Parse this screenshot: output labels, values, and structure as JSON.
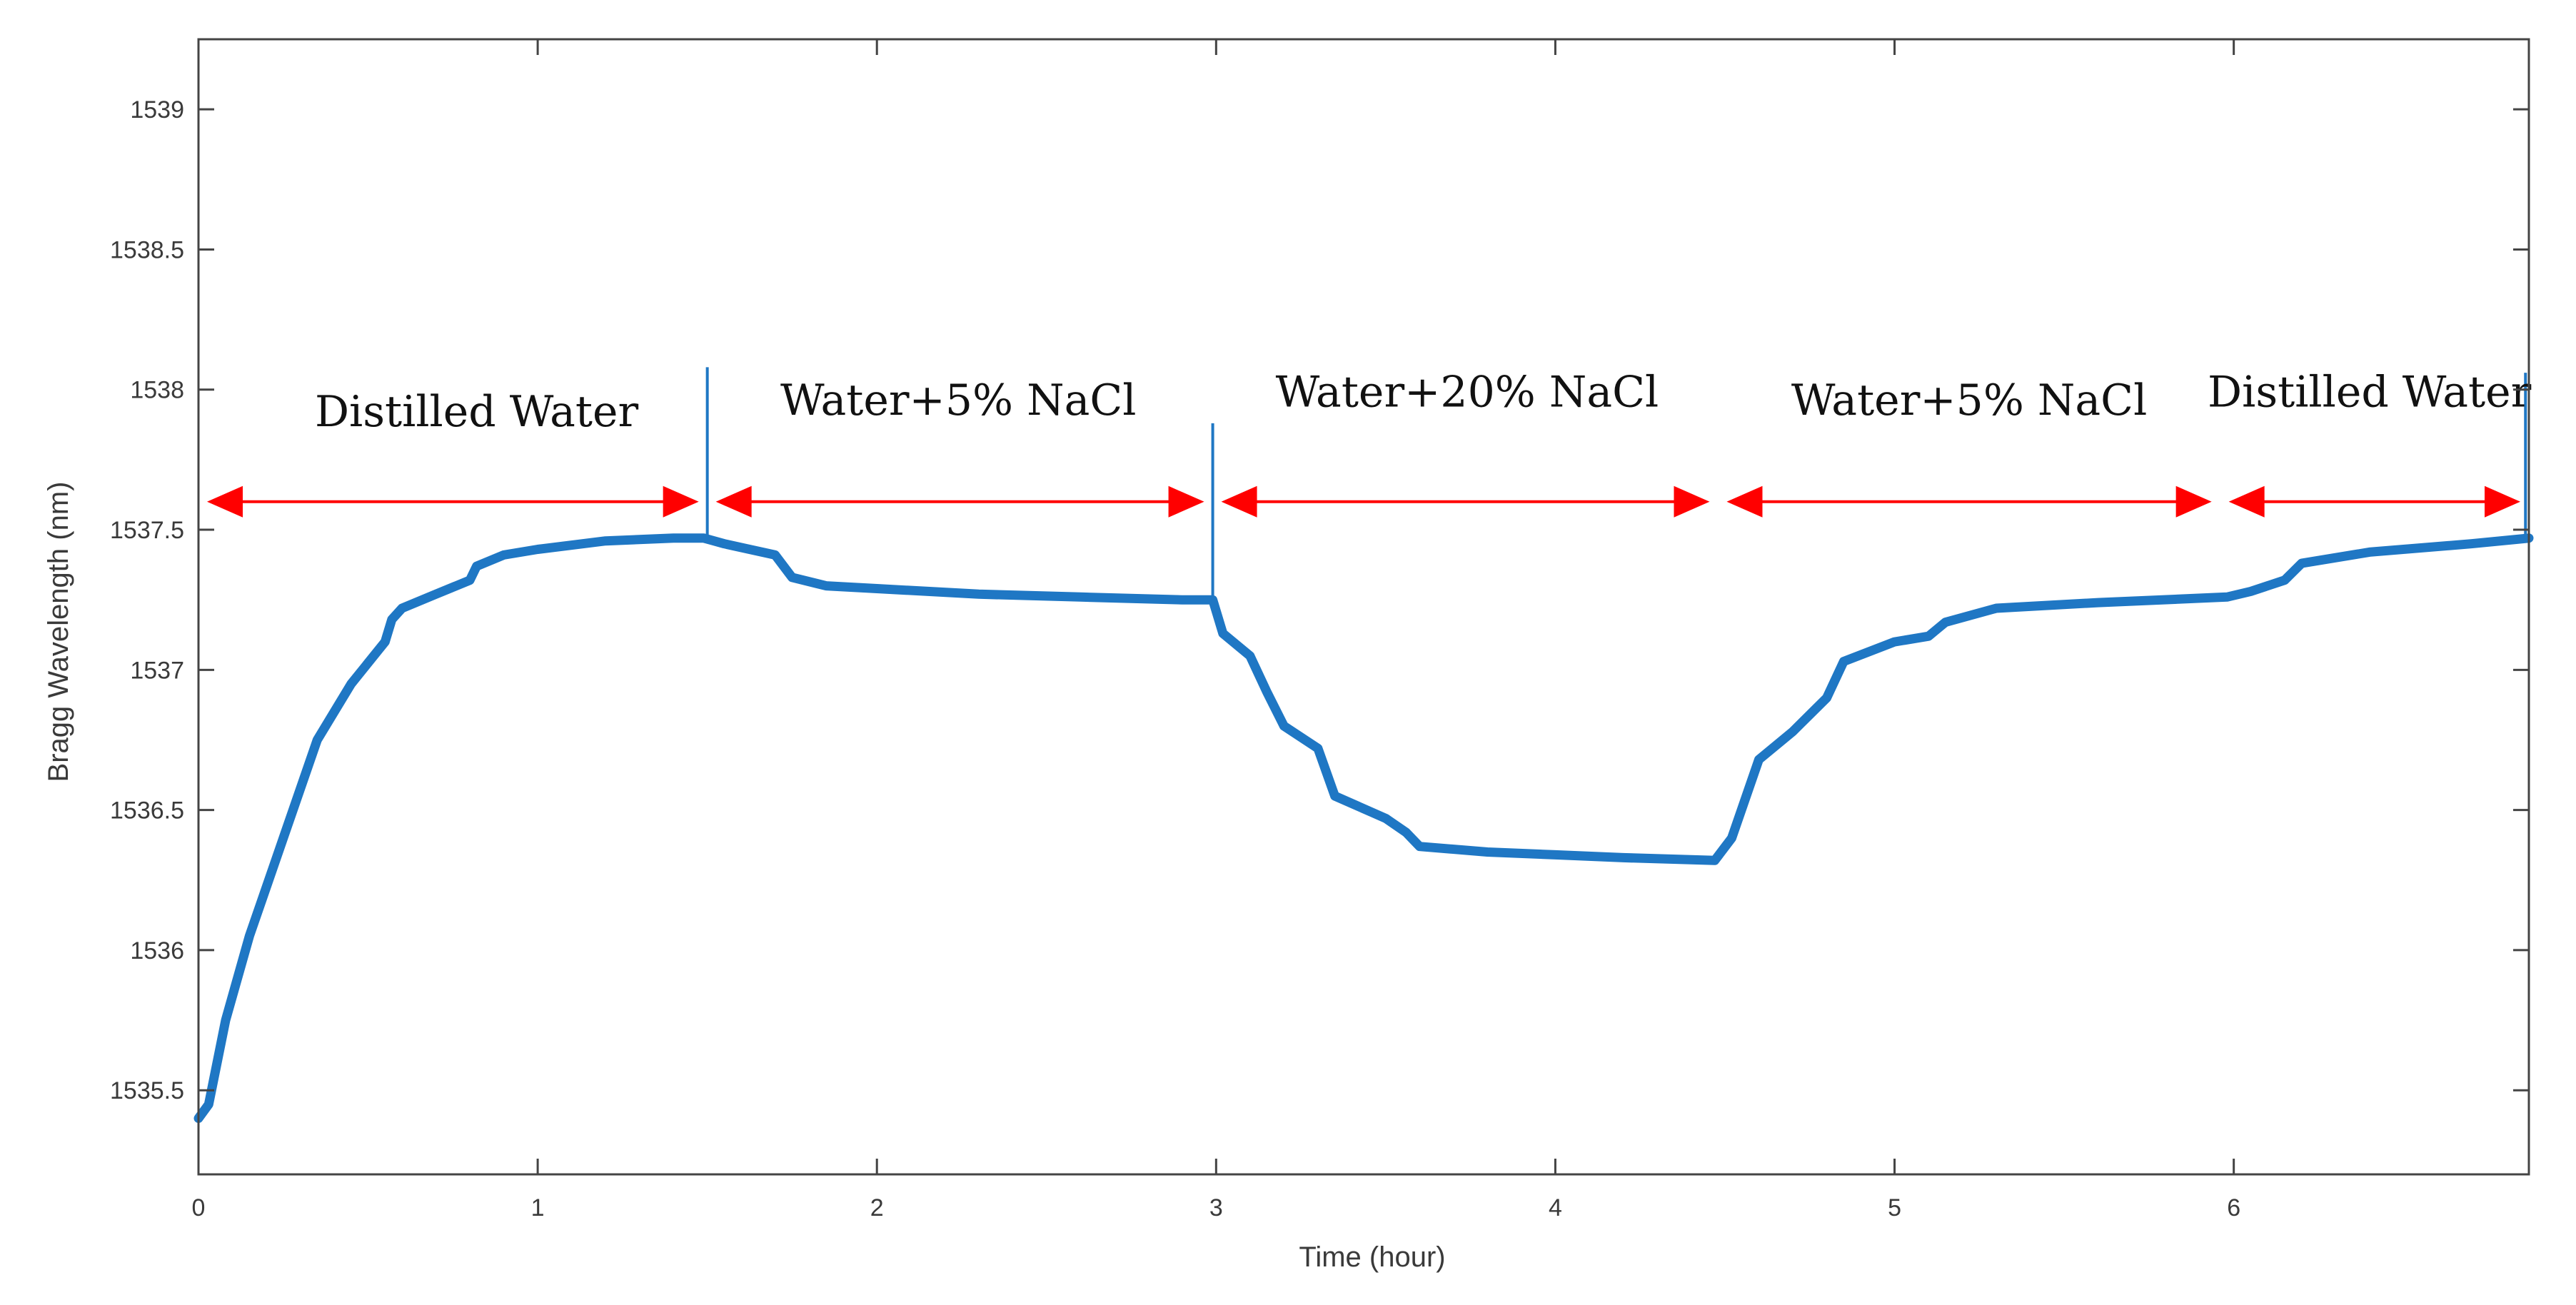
{
  "chart_data": {
    "type": "line",
    "title": "",
    "xlabel": "Time (hour)",
    "ylabel": "Bragg Wavelength (nm)",
    "xlim": [
      0,
      6.87
    ],
    "ylim": [
      1535.2,
      1539.25
    ],
    "xticks": [
      0,
      1,
      2,
      3,
      4,
      5,
      6
    ],
    "yticks": [
      1535.5,
      1536,
      1536.5,
      1537,
      1537.5,
      1538,
      1538.5,
      1539
    ],
    "xtick_labels": [
      "0",
      "1",
      "2",
      "3",
      "4",
      "5",
      "6"
    ],
    "ytick_labels": [
      "1535.5",
      "1536",
      "1536.5",
      "1537",
      "1537.5",
      "1538",
      "1538.5",
      "1539"
    ],
    "grid": false,
    "colors": {
      "series": "#1f77c4",
      "arrows": "#ff0000",
      "axes": "#444444"
    },
    "series": [
      {
        "name": "Bragg Wavelength",
        "x": [
          0,
          0.03,
          0.08,
          0.15,
          0.25,
          0.35,
          0.45,
          0.55,
          0.57,
          0.6,
          0.7,
          0.8,
          0.82,
          0.9,
          1.0,
          1.2,
          1.4,
          1.49,
          1.55,
          1.7,
          1.75,
          1.85,
          2.0,
          2.3,
          2.6,
          2.9,
          2.99,
          3.02,
          3.1,
          3.15,
          3.2,
          3.3,
          3.35,
          3.5,
          3.56,
          3.6,
          3.8,
          4.0,
          4.2,
          4.47,
          4.52,
          4.6,
          4.7,
          4.8,
          4.85,
          5.0,
          5.1,
          5.15,
          5.3,
          5.6,
          5.98,
          6.05,
          6.15,
          6.2,
          6.4,
          6.7,
          6.87
        ],
        "values": [
          1535.4,
          1535.45,
          1535.75,
          1536.05,
          1536.4,
          1536.75,
          1536.95,
          1537.1,
          1537.18,
          1537.22,
          1537.27,
          1537.32,
          1537.37,
          1537.41,
          1537.43,
          1537.46,
          1537.47,
          1537.47,
          1537.45,
          1537.41,
          1537.33,
          1537.3,
          1537.29,
          1537.27,
          1537.26,
          1537.25,
          1537.25,
          1537.13,
          1537.05,
          1536.92,
          1536.8,
          1536.72,
          1536.55,
          1536.47,
          1536.42,
          1536.37,
          1536.35,
          1536.34,
          1536.33,
          1536.32,
          1536.4,
          1536.68,
          1536.78,
          1536.9,
          1537.03,
          1537.1,
          1537.12,
          1537.17,
          1537.22,
          1537.24,
          1537.26,
          1537.28,
          1537.32,
          1537.38,
          1537.42,
          1537.45,
          1537.47
        ]
      }
    ],
    "spikes": [
      {
        "x": 1.5,
        "y_top": 1538.08
      },
      {
        "x": 2.99,
        "y_top": 1537.88
      },
      {
        "x": 6.86,
        "y_top": 1538.06
      }
    ],
    "annotations": [
      {
        "label": "Distilled Water",
        "x_start": 0.0,
        "x_end": 1.5,
        "arrow_y": 1537.6,
        "text_x": 0.82,
        "text_y": 1537.87
      },
      {
        "label": "Water+5% NaCl",
        "x_start": 1.5,
        "x_end": 2.99,
        "arrow_y": 1537.6,
        "text_x": 2.24,
        "text_y": 1537.91
      },
      {
        "label": "Water+20% NaCl",
        "x_start": 2.99,
        "x_end": 4.48,
        "arrow_y": 1537.6,
        "text_x": 3.74,
        "text_y": 1537.94
      },
      {
        "label": "Water+5% NaCl",
        "x_start": 4.48,
        "x_end": 5.96,
        "arrow_y": 1537.6,
        "text_x": 5.22,
        "text_y": 1537.91
      },
      {
        "label": "Distilled Water",
        "x_start": 5.96,
        "x_end": 6.87,
        "arrow_y": 1537.6,
        "text_x": 6.4,
        "text_y": 1537.94
      }
    ]
  }
}
